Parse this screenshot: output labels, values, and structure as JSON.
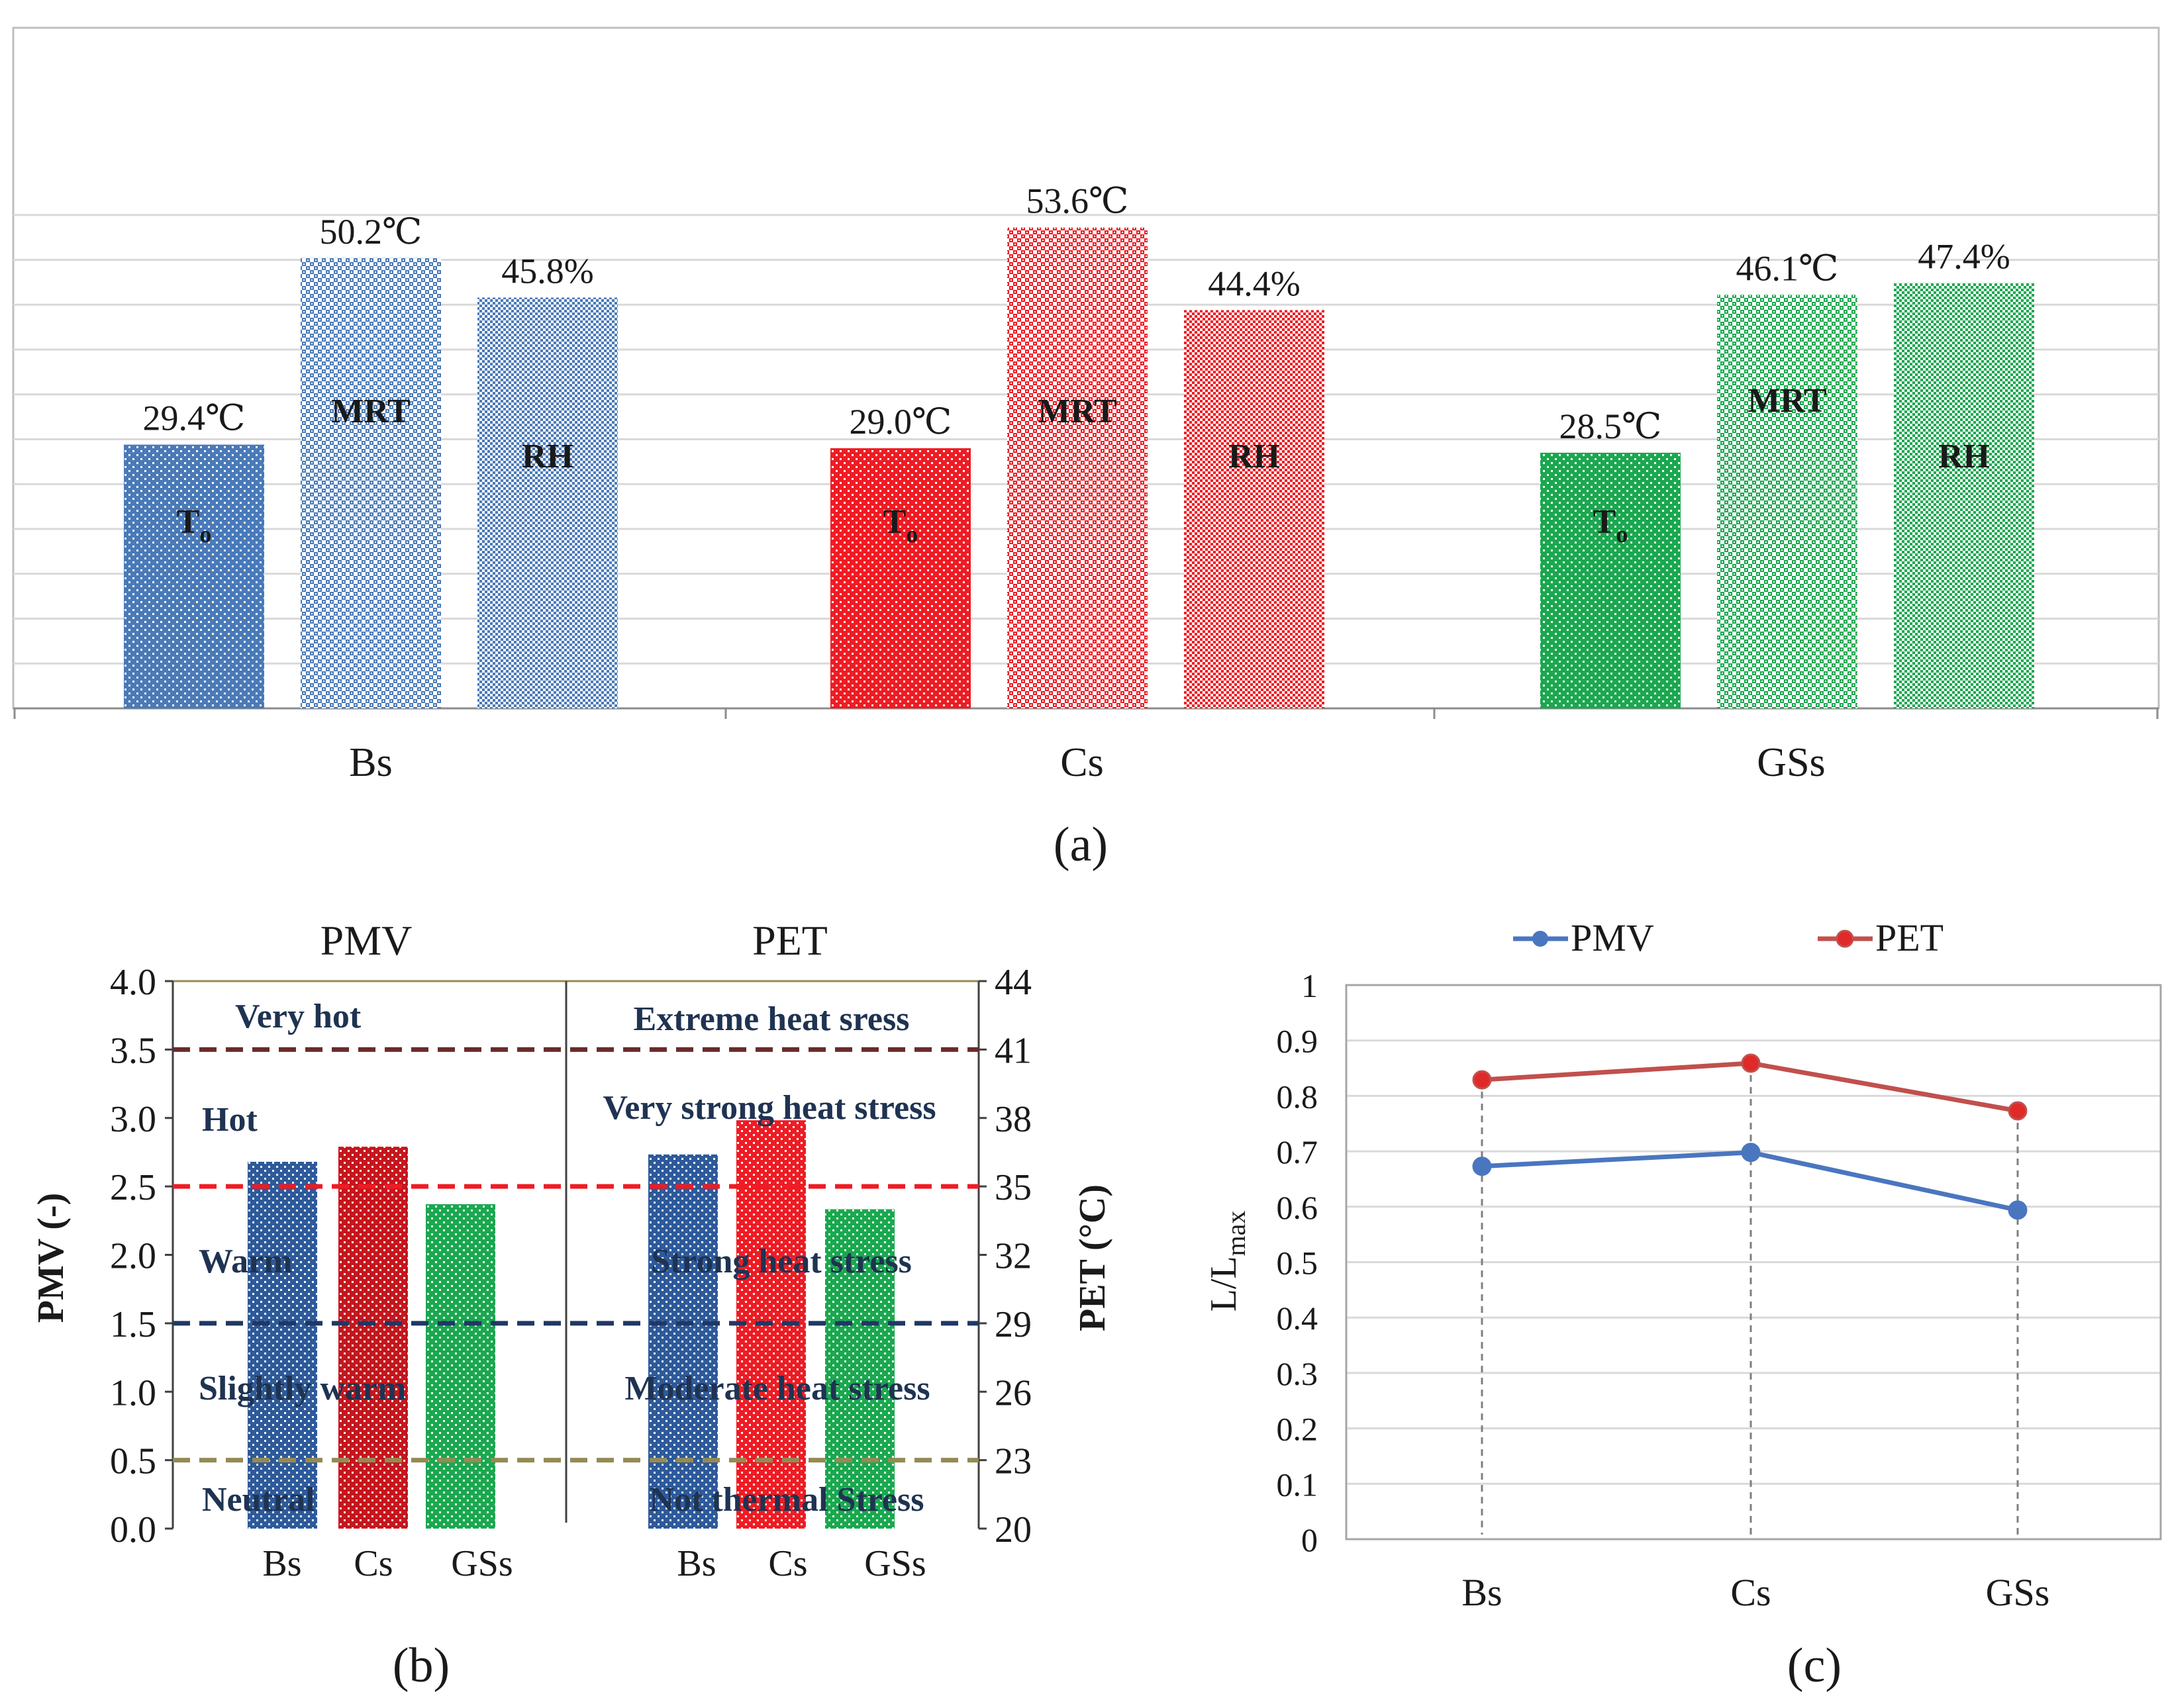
{
  "colors": {
    "blue": "#4a7ab8",
    "red": "#ee1c24",
    "dark_red": "#c4171e",
    "green": "#1aa84f",
    "line_blue": "#4a76c0",
    "line_red": "#c0504d",
    "grid": "#d9d9d9",
    "zone_text": "#1f3352",
    "line_very_hot": "#6b2a2a",
    "line_hot": "#ee1c24",
    "line_warm": "#1f3864",
    "line_slight": "#948a54"
  },
  "chart_data": [
    {
      "id": "a",
      "type": "bar",
      "panel_label": "(a)",
      "categories": [
        "Bs",
        "Cs",
        "GSs"
      ],
      "ylim": [
        0,
        60
      ],
      "series": [
        {
          "name": "To",
          "label_main": "T",
          "label_sub": "o",
          "values": [
            29.4,
            29.0,
            28.5
          ],
          "labels": [
            "29.4℃",
            "29.0℃",
            "28.5℃"
          ]
        },
        {
          "name": "MRT",
          "label_main": "MRT",
          "label_sub": "",
          "values": [
            50.2,
            53.6,
            46.1
          ],
          "labels": [
            "50.2℃",
            "53.6℃",
            "46.1℃"
          ]
        },
        {
          "name": "RH",
          "label_main": "RH",
          "label_sub": "",
          "values": [
            45.8,
            44.4,
            47.4
          ],
          "labels": [
            "45.8%",
            "44.4%",
            "47.4%"
          ]
        }
      ]
    },
    {
      "id": "b",
      "type": "bar",
      "panel_label": "(b)",
      "titles": {
        "left": "PMV",
        "right": "PET"
      },
      "ylabel_left": "PMV (-)",
      "ylabel_right": "PET (°C)",
      "left_ylim": [
        0,
        4
      ],
      "left_ticks": [
        "0.0",
        "0.5",
        "1.0",
        "1.5",
        "2.0",
        "2.5",
        "3.0",
        "3.5",
        "4.0"
      ],
      "right_ylim": [
        20,
        44
      ],
      "right_ticks": [
        "20",
        "23",
        "26",
        "29",
        "32",
        "35",
        "38",
        "41",
        "44"
      ],
      "categories": [
        "Bs",
        "Cs",
        "GSs"
      ],
      "pmv_values": [
        2.68,
        2.79,
        2.37
      ],
      "pet_values": [
        36.4,
        37.9,
        34.0
      ],
      "pmv_thresholds": [
        0.5,
        1.5,
        2.5,
        3.5
      ],
      "pmv_zones": [
        "Very hot",
        "Hot",
        "Warm",
        "Slightly warm",
        "Neutral"
      ],
      "pet_zones": [
        "Extreme heat sress",
        "Very strong heat stress",
        "Strong heat stress",
        "Moderate heat stress",
        "Not thermal Stress"
      ]
    },
    {
      "id": "c",
      "type": "line",
      "panel_label": "(c)",
      "categories": [
        "Bs",
        "Cs",
        "GSs"
      ],
      "ylim": [
        0,
        1
      ],
      "yticks": [
        "0",
        "0.1",
        "0.2",
        "0.3",
        "0.4",
        "0.5",
        "0.6",
        "0.7",
        "0.8",
        "0.9",
        "1"
      ],
      "ylabel_main": "L/L",
      "ylabel_sub": "max",
      "series": [
        {
          "name": "PMV",
          "values": [
            0.673,
            0.698,
            0.594
          ]
        },
        {
          "name": "PET",
          "values": [
            0.829,
            0.859,
            0.773
          ]
        }
      ]
    }
  ]
}
